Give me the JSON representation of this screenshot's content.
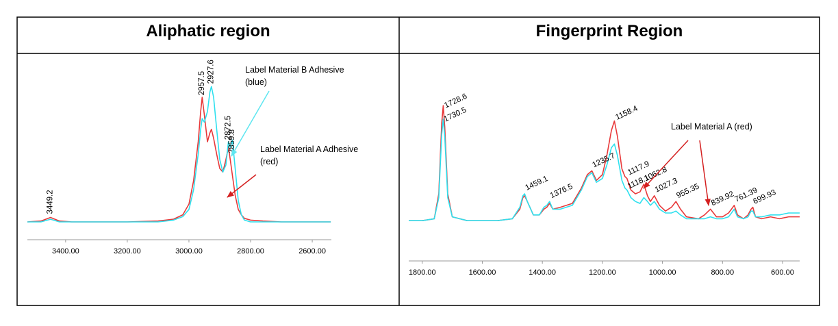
{
  "chart_data": [
    {
      "type": "line",
      "title": "Aliphatic region",
      "x": [
        3524,
        3480,
        3449,
        3420,
        3380,
        3300,
        3200,
        3100,
        3050,
        3020,
        3000,
        2985,
        2970,
        2962,
        2957,
        2950,
        2940,
        2932,
        2927,
        2920,
        2910,
        2900,
        2890,
        2880,
        2872,
        2866,
        2859,
        2850,
        2840,
        2830,
        2820,
        2800,
        2760,
        2700,
        2650,
        2600,
        2540
      ],
      "series": [
        {
          "color": "#e8393a",
          "values": [
            0.1,
            0.105,
            0.125,
            0.105,
            0.1,
            0.1,
            0.1,
            0.105,
            0.115,
            0.14,
            0.2,
            0.33,
            0.55,
            0.72,
            0.8,
            0.7,
            0.55,
            0.6,
            0.62,
            0.57,
            0.48,
            0.4,
            0.38,
            0.45,
            0.52,
            0.45,
            0.36,
            0.25,
            0.17,
            0.14,
            0.12,
            0.11,
            0.105,
            0.1,
            0.1,
            0.1,
            0.1
          ]
        },
        {
          "color": "#2fe0ee",
          "values": [
            0.1,
            0.1,
            0.115,
            0.1,
            0.1,
            0.1,
            0.1,
            0.1,
            0.11,
            0.13,
            0.17,
            0.28,
            0.48,
            0.62,
            0.68,
            0.66,
            0.72,
            0.83,
            0.86,
            0.8,
            0.62,
            0.45,
            0.38,
            0.42,
            0.55,
            0.52,
            0.56,
            0.4,
            0.22,
            0.14,
            0.11,
            0.1,
            0.1,
            0.1,
            0.1,
            0.1,
            0.1
          ]
        }
      ],
      "xlim": [
        3524,
        2538
      ],
      "xticks": [
        {
          "value": 3400,
          "label": "3400.00"
        },
        {
          "value": 3200,
          "label": "3200.00"
        },
        {
          "value": 3000,
          "label": "3000.00"
        },
        {
          "value": 2800,
          "label": "2800.00"
        },
        {
          "value": 2600,
          "label": "2600.00"
        }
      ],
      "ylim": [
        0,
        1
      ],
      "peaks": [
        3449.2,
        2957.5,
        2927.6,
        2872.5,
        2859.8
      ],
      "callouts": [
        {
          "lines": [
            "Label Material B Adhesive",
            "(blue)"
          ],
          "color": "#5ee6f0"
        },
        {
          "lines": [
            "Label Material A Adhesive",
            "(red)"
          ],
          "color": "#d42020"
        }
      ]
    },
    {
      "type": "line",
      "title": "Fingerprint Region",
      "x": [
        1845,
        1800,
        1760,
        1745,
        1735,
        1730,
        1725,
        1715,
        1700,
        1650,
        1550,
        1500,
        1475,
        1465,
        1459,
        1450,
        1430,
        1410,
        1395,
        1385,
        1376,
        1365,
        1340,
        1300,
        1270,
        1250,
        1235,
        1220,
        1200,
        1185,
        1170,
        1160,
        1150,
        1135,
        1125,
        1118,
        1105,
        1090,
        1075,
        1062,
        1050,
        1040,
        1027,
        1010,
        990,
        970,
        955,
        940,
        920,
        880,
        860,
        840,
        820,
        800,
        780,
        770,
        761,
        750,
        730,
        715,
        705,
        699,
        690,
        670,
        640,
        610,
        580,
        543
      ],
      "series": [
        {
          "color": "#e8393a",
          "values": [
            0.21,
            0.21,
            0.22,
            0.35,
            0.72,
            0.81,
            0.7,
            0.35,
            0.23,
            0.21,
            0.21,
            0.22,
            0.27,
            0.33,
            0.34,
            0.31,
            0.24,
            0.24,
            0.27,
            0.28,
            0.3,
            0.27,
            0.28,
            0.3,
            0.38,
            0.45,
            0.47,
            0.42,
            0.45,
            0.55,
            0.68,
            0.73,
            0.65,
            0.48,
            0.44,
            0.43,
            0.37,
            0.35,
            0.36,
            0.4,
            0.34,
            0.31,
            0.34,
            0.29,
            0.26,
            0.28,
            0.31,
            0.27,
            0.23,
            0.22,
            0.24,
            0.27,
            0.23,
            0.23,
            0.25,
            0.27,
            0.29,
            0.24,
            0.22,
            0.24,
            0.27,
            0.28,
            0.23,
            0.22,
            0.23,
            0.22,
            0.23,
            0.23
          ]
        },
        {
          "color": "#2fe0ee",
          "values": [
            0.21,
            0.21,
            0.22,
            0.33,
            0.66,
            0.74,
            0.65,
            0.33,
            0.23,
            0.21,
            0.21,
            0.22,
            0.28,
            0.34,
            0.35,
            0.31,
            0.24,
            0.24,
            0.28,
            0.29,
            0.31,
            0.27,
            0.27,
            0.29,
            0.37,
            0.44,
            0.46,
            0.41,
            0.43,
            0.5,
            0.59,
            0.61,
            0.55,
            0.42,
            0.38,
            0.37,
            0.33,
            0.31,
            0.3,
            0.33,
            0.31,
            0.29,
            0.31,
            0.27,
            0.25,
            0.25,
            0.26,
            0.24,
            0.22,
            0.22,
            0.22,
            0.23,
            0.22,
            0.22,
            0.23,
            0.25,
            0.27,
            0.23,
            0.22,
            0.23,
            0.26,
            0.26,
            0.23,
            0.23,
            0.24,
            0.24,
            0.25,
            0.25
          ]
        }
      ],
      "xlim": [
        1845,
        543
      ],
      "xticks": [
        {
          "value": 1800,
          "label": "1800.00"
        },
        {
          "value": 1600,
          "label": "1600.00"
        },
        {
          "value": 1400,
          "label": "1400.00"
        },
        {
          "value": 1200,
          "label": "1200.00"
        },
        {
          "value": 1000,
          "label": "1000.00"
        },
        {
          "value": 800,
          "label": "800.00"
        },
        {
          "value": 600,
          "label": "600.00"
        }
      ],
      "ylim": [
        0,
        1
      ],
      "peaks": [
        1728.6,
        1730.5,
        1459.1,
        1376.5,
        1235.7,
        1158.4,
        1117.9,
        1118.1,
        1062.8,
        1027.3,
        955.35,
        839.92,
        761.39,
        699.93
      ],
      "callouts": [
        {
          "lines": [
            "Label Material A (red)"
          ],
          "color": "#d42020"
        }
      ]
    }
  ]
}
